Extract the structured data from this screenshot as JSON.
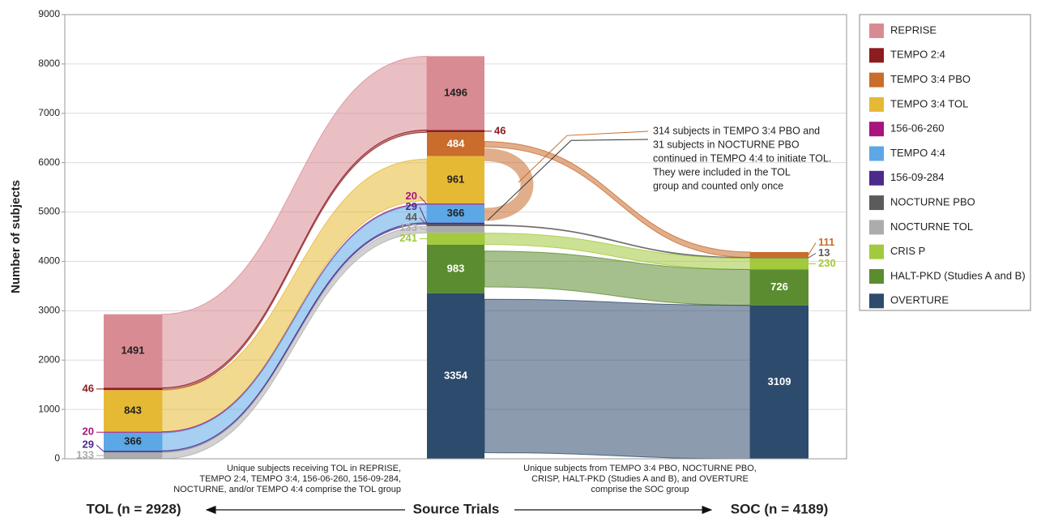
{
  "chart_data": {
    "type": "sankey-bar",
    "y_label": "Number of subjects",
    "categories": [
      "TOL (n = 2928)",
      "Source Trials",
      "SOC (n = 4189)"
    ],
    "ylim": [
      0,
      9000
    ],
    "yticks": [
      0,
      1000,
      2000,
      3000,
      4000,
      5000,
      6000,
      7000,
      8000,
      9000
    ],
    "grid": true,
    "legend": "right",
    "series": [
      {
        "name": "REPRISE",
        "color": "#d98b94",
        "values": [
          1491,
          1496,
          null
        ]
      },
      {
        "name": "TEMPO 2:4",
        "color": "#8c1c1f",
        "values": [
          46,
          46,
          null
        ]
      },
      {
        "name": "TEMPO 3:4 PBO",
        "color": "#c96c2c",
        "values": [
          null,
          484,
          111
        ]
      },
      {
        "name": "TEMPO 3:4 TOL",
        "color": "#e6b935",
        "values": [
          843,
          961,
          null
        ]
      },
      {
        "name": "156-06-260",
        "color": "#a8157c",
        "values": [
          20,
          20,
          null
        ]
      },
      {
        "name": "TEMPO 4:4",
        "color": "#5ca7e6",
        "values": [
          366,
          366,
          null
        ]
      },
      {
        "name": "156-09-284",
        "color": "#4b2a8a",
        "values": [
          29,
          29,
          null
        ]
      },
      {
        "name": "NOCTURNE PBO",
        "color": "#5b5b5b",
        "values": [
          null,
          44,
          13
        ]
      },
      {
        "name": "NOCTURNE TOL",
        "color": "#acacac",
        "values": [
          133,
          133,
          null
        ]
      },
      {
        "name": "CRIS P",
        "color": "#a3c93c",
        "values": [
          null,
          241,
          230
        ]
      },
      {
        "name": "HALT-PKD (Studies A and B)",
        "color": "#5b8d30",
        "values": [
          null,
          983,
          726
        ]
      },
      {
        "name": "OVERTURE",
        "color": "#2d4b6c",
        "values": [
          null,
          3354,
          3109
        ]
      }
    ],
    "annotation": [
      "314 subjects in TEMPO 3:4 PBO and",
      "31 subjects in NOCTURNE PBO",
      "continued in TEMPO 4:4 to initiate TOL.",
      "They were included in the TOL",
      "group and counted only once"
    ],
    "tol_note": [
      "Unique subjects receiving TOL in REPRISE,",
      "TEMPO 2:4, TEMPO 3:4, 156-06-260, 156-09-284,",
      "NOCTURNE, and/or TEMPO 4:4 comprise the TOL group"
    ],
    "soc_note": [
      "Unique subjects from TEMPO 3:4 PBO, NOCTURNE PBO,",
      "CRISP, HALT-PKD (Studies A and B), and OVERTURE",
      "comprise the SOC group"
    ]
  }
}
